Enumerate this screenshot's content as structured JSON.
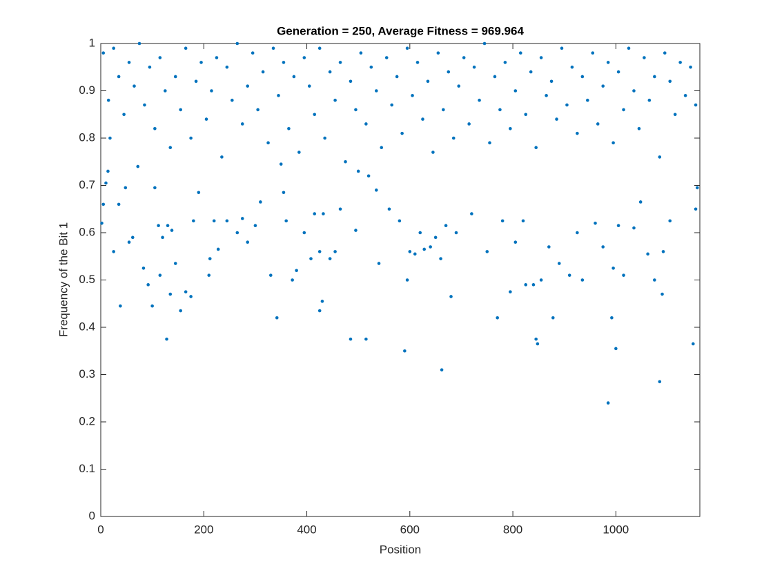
{
  "chart_data": {
    "type": "scatter",
    "title": "Generation = 250, Average Fitness = 969.964",
    "x_label": "Position",
    "y_label": "Frequency of the Bit 1",
    "color": "#0072bd",
    "xlim": [
      0,
      1163
    ],
    "xticks": [
      0,
      200,
      400,
      600,
      800,
      1000
    ],
    "ylim": [
      0,
      1
    ],
    "yticks": [
      0,
      0.1,
      0.2,
      0.3,
      0.4,
      0.5,
      0.6,
      0.7,
      0.8,
      0.9,
      1
    ],
    "box": true,
    "x": [
      5,
      15,
      25,
      35,
      45,
      55,
      65,
      75,
      85,
      95,
      105,
      115,
      125,
      135,
      145,
      155,
      165,
      175,
      185,
      195,
      205,
      215,
      225,
      235,
      245,
      255,
      265,
      275,
      285,
      295,
      305,
      315,
      325,
      335,
      345,
      355,
      365,
      375,
      385,
      395,
      405,
      415,
      425,
      435,
      445,
      455,
      465,
      475,
      485,
      495,
      505,
      515,
      525,
      535,
      545,
      555,
      565,
      575,
      585,
      595,
      605,
      615,
      625,
      635,
      645,
      655,
      665,
      675,
      685,
      695,
      705,
      715,
      725,
      735,
      745,
      755,
      765,
      775,
      785,
      795,
      805,
      815,
      825,
      835,
      845,
      855,
      865,
      875,
      885,
      895,
      905,
      915,
      925,
      935,
      945,
      955,
      965,
      975,
      985,
      995,
      1005,
      1015,
      1025,
      1035,
      1045,
      1055,
      1065,
      1075,
      1085,
      1095,
      1105,
      1115,
      1125,
      1135,
      1145,
      1155,
      2,
      5,
      10,
      14,
      18,
      25,
      35,
      38,
      48,
      55,
      62,
      72,
      83,
      92,
      100,
      105,
      112,
      115,
      120,
      128,
      130,
      135,
      138,
      145,
      155,
      165,
      175,
      180,
      190,
      210,
      212,
      220,
      228,
      245,
      265,
      275,
      285,
      300,
      310,
      330,
      342,
      350,
      355,
      360,
      372,
      380,
      395,
      408,
      415,
      425,
      425,
      430,
      432,
      445,
      455,
      465,
      485,
      495,
      500,
      515,
      520,
      535,
      540,
      560,
      580,
      590,
      595,
      600,
      610,
      620,
      628,
      640,
      650,
      660,
      662,
      670,
      680,
      690,
      720,
      750,
      770,
      780,
      795,
      805,
      820,
      825,
      840,
      845,
      848,
      855,
      870,
      878,
      890,
      910,
      925,
      935,
      960,
      975,
      985,
      992,
      995,
      1000,
      1005,
      1015,
      1035,
      1048,
      1062,
      1075,
      1085,
      1090,
      1092,
      1105,
      1150,
      1155,
      1158
    ],
    "y": [
      0.98,
      0.88,
      0.99,
      0.93,
      0.85,
      0.96,
      0.91,
      1.0,
      0.87,
      0.95,
      0.82,
      0.97,
      0.9,
      0.78,
      0.93,
      0.86,
      0.99,
      0.8,
      0.92,
      0.96,
      0.84,
      0.9,
      0.97,
      0.76,
      0.95,
      0.88,
      1.0,
      0.83,
      0.91,
      0.98,
      0.86,
      0.94,
      0.79,
      0.99,
      0.89,
      0.96,
      0.82,
      0.93,
      0.77,
      0.97,
      0.91,
      0.85,
      0.99,
      0.8,
      0.94,
      0.88,
      0.96,
      0.75,
      0.92,
      0.86,
      0.98,
      0.83,
      0.95,
      0.9,
      0.78,
      0.97,
      0.87,
      0.93,
      0.81,
      0.99,
      0.89,
      0.96,
      0.84,
      0.92,
      0.77,
      0.98,
      0.86,
      0.94,
      0.8,
      0.91,
      0.97,
      0.83,
      0.95,
      0.88,
      1.0,
      0.79,
      0.93,
      0.86,
      0.96,
      0.82,
      0.9,
      0.98,
      0.85,
      0.94,
      0.78,
      0.97,
      0.89,
      0.92,
      0.84,
      0.99,
      0.87,
      0.95,
      0.81,
      0.93,
      0.88,
      0.98,
      0.83,
      0.91,
      0.96,
      0.79,
      0.94,
      0.86,
      0.99,
      0.9,
      0.82,
      0.97,
      0.88,
      0.93,
      0.76,
      0.98,
      0.92,
      0.85,
      0.96,
      0.89,
      0.95,
      0.87,
      0.62,
      0.66,
      0.705,
      0.73,
      0.8,
      0.56,
      0.66,
      0.445,
      0.695,
      0.58,
      0.59,
      0.74,
      0.525,
      0.49,
      0.445,
      0.695,
      0.615,
      0.51,
      0.59,
      0.375,
      0.615,
      0.47,
      0.605,
      0.535,
      0.435,
      0.475,
      0.465,
      0.625,
      0.685,
      0.51,
      0.545,
      0.625,
      0.565,
      0.625,
      0.6,
      0.63,
      0.58,
      0.615,
      0.665,
      0.51,
      0.42,
      0.745,
      0.685,
      0.625,
      0.5,
      0.52,
      0.6,
      0.545,
      0.64,
      0.56,
      0.435,
      0.455,
      0.64,
      0.545,
      0.56,
      0.65,
      0.375,
      0.605,
      0.73,
      0.375,
      0.72,
      0.69,
      0.535,
      0.65,
      0.625,
      0.35,
      0.5,
      0.56,
      0.555,
      0.6,
      0.565,
      0.57,
      0.59,
      0.545,
      0.31,
      0.615,
      0.465,
      0.6,
      0.64,
      0.56,
      0.42,
      0.625,
      0.475,
      0.58,
      0.625,
      0.49,
      0.49,
      0.375,
      0.365,
      0.5,
      0.57,
      0.42,
      0.535,
      0.51,
      0.6,
      0.5,
      0.62,
      0.57,
      0.24,
      0.42,
      0.525,
      0.355,
      0.615,
      0.51,
      0.61,
      0.665,
      0.555,
      0.5,
      0.285,
      0.47,
      0.56,
      0.625,
      0.365,
      0.65,
      0.695
    ]
  }
}
